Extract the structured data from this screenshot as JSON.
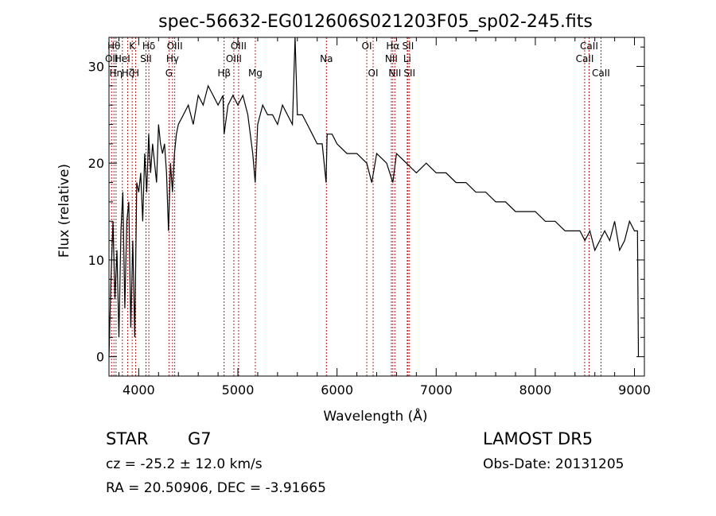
{
  "chart_data": {
    "type": "line",
    "title": "spec-56632-EG012606S021203F05_sp02-245.fits",
    "xlabel": "Wavelength (Å)",
    "ylabel": "Flux (relative)",
    "xlim": [
      3700,
      9100
    ],
    "ylim": [
      -2,
      33
    ],
    "xticks": [
      4000,
      5000,
      6000,
      7000,
      8000,
      9000
    ],
    "yticks": [
      0,
      10,
      20,
      30
    ],
    "grid": false,
    "line_color": "#000000",
    "marker_color": "#b22222",
    "series": [
      {
        "x": [
          3700,
          3720,
          3740,
          3760,
          3780,
          3800,
          3820,
          3840,
          3860,
          3880,
          3900,
          3920,
          3940,
          3960,
          3980,
          4000,
          4020,
          4040,
          4060,
          4080,
          4100,
          4120,
          4140,
          4160,
          4180,
          4200,
          4220,
          4240,
          4260,
          4280,
          4300,
          4320,
          4340,
          4360,
          4380,
          4400,
          4450,
          4500,
          4550,
          4600,
          4650,
          4700,
          4750,
          4800,
          4850,
          4861,
          4900,
          4950,
          5000,
          5050,
          5100,
          5150,
          5175,
          5200,
          5250,
          5300,
          5350,
          5400,
          5450,
          5500,
          5550,
          5577,
          5600,
          5650,
          5700,
          5750,
          5800,
          5850,
          5890,
          5900,
          5950,
          6000,
          6100,
          6200,
          6300,
          6350,
          6400,
          6500,
          6563,
          6600,
          6700,
          6800,
          6900,
          7000,
          7100,
          7200,
          7300,
          7400,
          7500,
          7600,
          7700,
          7800,
          7900,
          8000,
          8100,
          8200,
          8300,
          8400,
          8450,
          8500,
          8550,
          8600,
          8650,
          8700,
          8750,
          8800,
          8850,
          8900,
          8950,
          9000,
          9030,
          9040
        ],
        "values": [
          0,
          8,
          14,
          6,
          11,
          2,
          13,
          17,
          5,
          14,
          16,
          3,
          12,
          2,
          18,
          17,
          19,
          14,
          21,
          17,
          23,
          19,
          22,
          20,
          18,
          24,
          22,
          21,
          22,
          19,
          13,
          20,
          17,
          21,
          23,
          24,
          25,
          26,
          24,
          27,
          26,
          28,
          27,
          26,
          27,
          23,
          26,
          27,
          26,
          27,
          25,
          21,
          18,
          24,
          26,
          25,
          25,
          24,
          26,
          25,
          24,
          33,
          25,
          25,
          24,
          23,
          22,
          22,
          18,
          23,
          23,
          22,
          21,
          21,
          20,
          18,
          21,
          20,
          18,
          21,
          20,
          19,
          20,
          19,
          19,
          18,
          18,
          17,
          17,
          16,
          16,
          15,
          15,
          15,
          14,
          14,
          13,
          13,
          13,
          12,
          13,
          11,
          12,
          13,
          12,
          14,
          11,
          12,
          14,
          13,
          13,
          0
        ]
      }
    ],
    "line_markers": [
      {
        "wl": 3726,
        "label": "OII",
        "row": 2
      },
      {
        "wl": 3750,
        "label": "Hθ",
        "row": 1
      },
      {
        "wl": 3771,
        "label": "Hη",
        "row": 3
      },
      {
        "wl": 3835,
        "label": "HeI",
        "row": 2
      },
      {
        "wl": 3889,
        "label": "Hζ",
        "row": 3
      },
      {
        "wl": 3934,
        "label": "K",
        "row": 1
      },
      {
        "wl": 3969,
        "label": "H",
        "row": 3
      },
      {
        "wl": 4073,
        "label": "SII",
        "row": 2
      },
      {
        "wl": 4102,
        "label": "Hδ",
        "row": 1
      },
      {
        "wl": 4305,
        "label": "G",
        "row": 3
      },
      {
        "wl": 4341,
        "label": "Hγ",
        "row": 2
      },
      {
        "wl": 4363,
        "label": "OIII",
        "row": 1
      },
      {
        "wl": 4861,
        "label": "Hβ",
        "row": 3
      },
      {
        "wl": 4959,
        "label": "OIII",
        "row": 2
      },
      {
        "wl": 5007,
        "label": "OIII",
        "row": 1
      },
      {
        "wl": 5176,
        "label": "Mg",
        "row": 3
      },
      {
        "wl": 5893,
        "label": "Na",
        "row": 2
      },
      {
        "wl": 6300,
        "label": "OI",
        "row": 1
      },
      {
        "wl": 6364,
        "label": "OI",
        "row": 3
      },
      {
        "wl": 6548,
        "label": "NII",
        "row": 2
      },
      {
        "wl": 6563,
        "label": "Hα",
        "row": 1
      },
      {
        "wl": 6583,
        "label": "NII",
        "row": 3
      },
      {
        "wl": 6708,
        "label": "Li",
        "row": 2
      },
      {
        "wl": 6716,
        "label": "SII",
        "row": 1
      },
      {
        "wl": 6731,
        "label": "SII",
        "row": 3
      },
      {
        "wl": 8498,
        "label": "CaII",
        "row": 2
      },
      {
        "wl": 8542,
        "label": "CaII",
        "row": 1
      },
      {
        "wl": 8662,
        "label": "CaII",
        "row": 3
      }
    ]
  },
  "footer": {
    "class_label": "STAR",
    "subclass": "G7",
    "survey": "LAMOST DR5",
    "cz": "cz = -25.2 ± 12.0 km/s",
    "obs_date": "Obs-Date: 20131205",
    "coords": "RA =  20.50906, DEC =  -3.91665"
  }
}
